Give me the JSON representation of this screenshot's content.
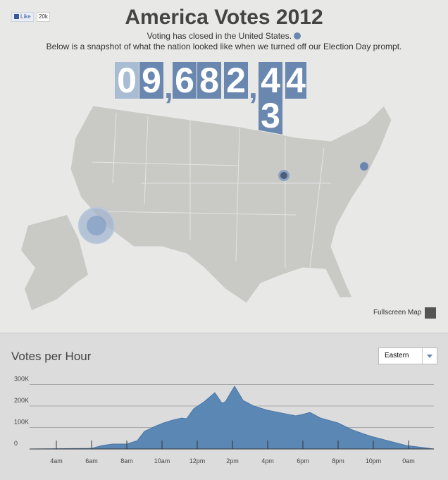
{
  "like_button": {
    "label": "Like",
    "count": "20k"
  },
  "header": {
    "title": "America Votes 2012",
    "subtitle": "Voting has closed in the United States.",
    "description": "Below is a snapshot of what the nation looked like when we turned off our Election Day prompt."
  },
  "counter": {
    "characters": [
      "0",
      "9",
      ",",
      "6",
      "8",
      "2",
      ",",
      "4",
      "4"
    ],
    "rolling_digit": "3"
  },
  "map": {
    "fullscreen_label": "Fullscreen Map"
  },
  "timezone_select": {
    "value": "Eastern"
  },
  "chart_data": {
    "type": "area",
    "title": "Votes per Hour",
    "color": "#5b87b4",
    "grid": true,
    "x": [
      2.48,
      6,
      6.6,
      7.2,
      8,
      8.6,
      9,
      9.6,
      10.08,
      10.6,
      11.12,
      11.4,
      11.8,
      12.4,
      13,
      13.4,
      13.6,
      14.12,
      14.6,
      15.2,
      16,
      16.8,
      17.6,
      18,
      18.4,
      19,
      20,
      20.8,
      21.6,
      22,
      22.8,
      23.88,
      24.8,
      25.44
    ],
    "values": [
      0,
      3000,
      16000,
      23000,
      23000,
      39000,
      82000,
      105000,
      121000,
      134000,
      144000,
      141000,
      187000,
      220000,
      262000,
      213000,
      220000,
      292000,
      226000,
      200000,
      180000,
      167000,
      154000,
      161000,
      170000,
      144000,
      121000,
      89000,
      66000,
      56000,
      39000,
      16000,
      7000,
      0
    ],
    "xlim": [
      2.48,
      25.44
    ],
    "xticks": [
      {
        "value": 4,
        "label": "4am"
      },
      {
        "value": 6,
        "label": "6am"
      },
      {
        "value": 8,
        "label": "8am"
      },
      {
        "value": 10,
        "label": "10am"
      },
      {
        "value": 12,
        "label": "12pm"
      },
      {
        "value": 14,
        "label": "2pm"
      },
      {
        "value": 16,
        "label": "4pm"
      },
      {
        "value": 18,
        "label": "6pm"
      },
      {
        "value": 20,
        "label": "8pm"
      },
      {
        "value": 22,
        "label": "10pm"
      },
      {
        "value": 24,
        "label": "0am"
      }
    ],
    "ylim": [
      0,
      318000
    ],
    "yticks": [
      0,
      {
        "value": 100000,
        "label": "100K"
      },
      {
        "value": 200000,
        "label": "200K"
      },
      {
        "value": 300000,
        "label": "300K"
      }
    ]
  }
}
